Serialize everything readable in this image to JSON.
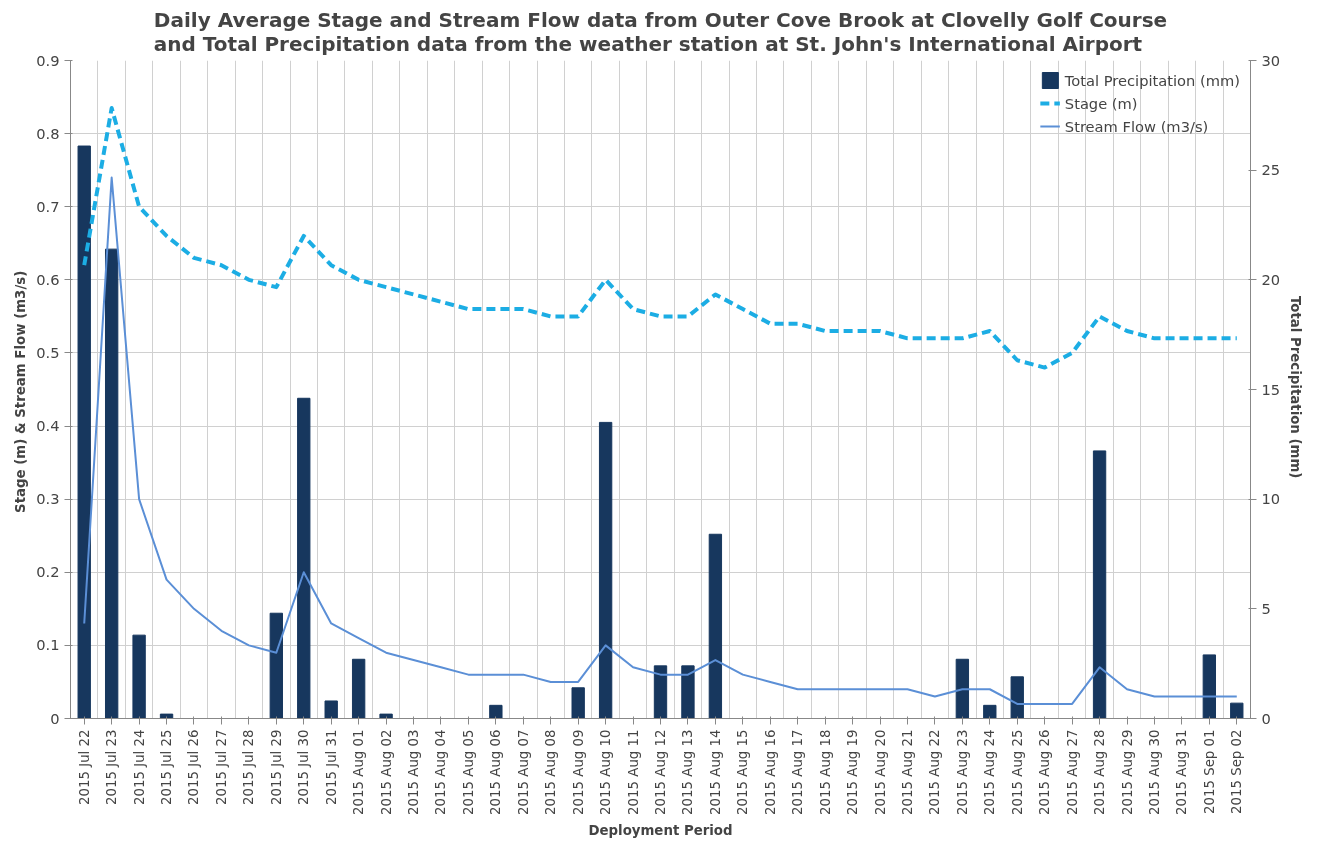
{
  "chart_data": {
    "type": "bar",
    "title": "Daily Average Stage and Stream Flow data from Outer Cove Brook at Clovelly Golf Course\nand Total Precipitation data from the weather station at St. John's International Airport",
    "xlabel": "Deployment Period",
    "ylabel": "Stage  (m) & Stream Flow (m3/s)",
    "y2label": "Total Precipitation  (mm)",
    "categories": [
      "2015 Jul 22",
      "2015 Jul 23",
      "2015 Jul 24",
      "2015 Jul 25",
      "2015 Jul 26",
      "2015 Jul 27",
      "2015 Jul 28",
      "2015 Jul 29",
      "2015 Jul 30",
      "2015 Jul 31",
      "2015 Aug 01",
      "2015 Aug 02",
      "2015 Aug 03",
      "2015 Aug 04",
      "2015 Aug 05",
      "2015 Aug 06",
      "2015 Aug 07",
      "2015 Aug 08",
      "2015 Aug 09",
      "2015 Aug 10",
      "2015 Aug 11",
      "2015 Aug 12",
      "2015 Aug 13",
      "2015 Aug 14",
      "2015 Aug 15",
      "2015 Aug 16",
      "2015 Aug 17",
      "2015 Aug 18",
      "2015 Aug 19",
      "2015 Aug 20",
      "2015 Aug 21",
      "2015 Aug 22",
      "2015 Aug 23",
      "2015 Aug 24",
      "2015 Aug 25",
      "2015 Aug 26",
      "2015 Aug 27",
      "2015 Aug 28",
      "2015 Aug 29",
      "2015 Aug 30",
      "2015 Aug 31",
      "2015 Sep 01",
      "2015 Sep 02"
    ],
    "series": [
      {
        "name": "Total Precipitation (mm)",
        "axis": "y2",
        "color": "#17375e",
        "values": [
          26.1,
          21.4,
          3.8,
          0.2,
          0,
          0,
          0,
          4.8,
          14.6,
          0.8,
          2.7,
          0.2,
          0,
          0,
          0,
          0.6,
          0,
          0,
          1.4,
          13.5,
          0,
          2.4,
          2.4,
          8.4,
          0,
          0,
          0,
          0,
          0,
          0,
          0,
          0,
          2.7,
          0.6,
          1.9,
          0,
          0,
          12.2,
          0,
          0,
          0,
          2.9,
          0.7
        ]
      },
      {
        "name": "Stage (m)",
        "type": "line",
        "line_style": "dashed",
        "color": "#1cade4",
        "values": [
          0.62,
          0.835,
          0.7,
          0.66,
          0.63,
          0.62,
          0.6,
          0.59,
          0.66,
          0.62,
          0.6,
          0.59,
          0.58,
          0.57,
          0.56,
          0.56,
          0.56,
          0.55,
          0.55,
          0.6,
          0.56,
          0.55,
          0.55,
          0.58,
          0.56,
          0.54,
          0.54,
          0.53,
          0.53,
          0.53,
          0.52,
          0.52,
          0.52,
          0.53,
          0.49,
          0.48,
          0.5,
          0.55,
          0.53,
          0.52,
          0.52,
          0.52,
          0.52
        ]
      },
      {
        "name": "Stream Flow (m3/s)",
        "type": "line",
        "line_style": "solid",
        "color": "#5b8fd6",
        "values": [
          0.13,
          0.74,
          0.3,
          0.19,
          0.15,
          0.12,
          0.1,
          0.09,
          0.2,
          0.13,
          0.11,
          0.09,
          0.08,
          0.07,
          0.06,
          0.06,
          0.06,
          0.05,
          0.05,
          0.1,
          0.07,
          0.06,
          0.06,
          0.08,
          0.06,
          0.05,
          0.04,
          0.04,
          0.04,
          0.04,
          0.04,
          0.03,
          0.04,
          0.04,
          0.02,
          0.02,
          0.02,
          0.07,
          0.04,
          0.03,
          0.03,
          0.03,
          0.03
        ]
      }
    ],
    "ylim": [
      0,
      0.9
    ],
    "yticks": [
      0,
      0.1,
      0.2,
      0.3,
      0.4,
      0.5,
      0.6,
      0.7,
      0.8,
      0.9
    ],
    "y2lim": [
      0,
      30
    ],
    "y2ticks": [
      0,
      5,
      10,
      15,
      20,
      25,
      30
    ],
    "grid": true,
    "legend": "top right"
  }
}
